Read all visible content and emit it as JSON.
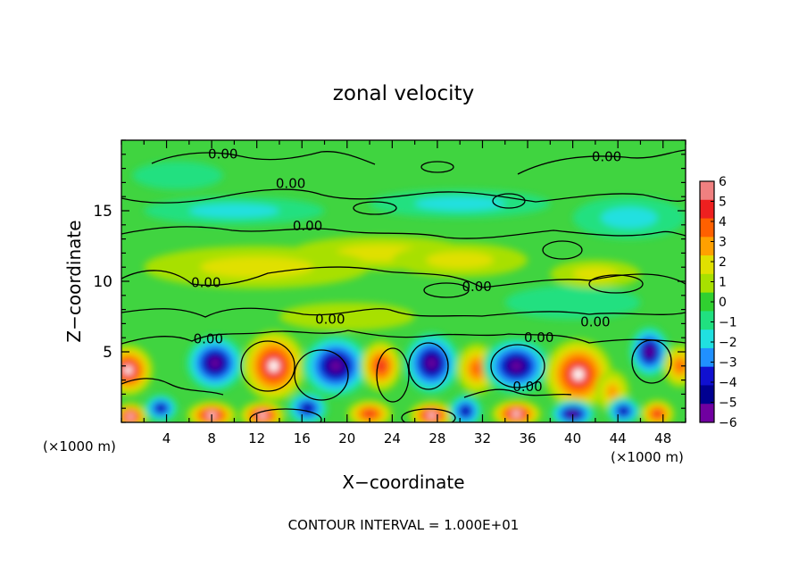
{
  "chart_data": {
    "type": "heatmap",
    "title": "zonal velocity",
    "xlabel": "X−coordinate",
    "ylabel": "Z−coordinate",
    "x_unit_left": "(×1000 m)",
    "x_unit_right": "(×1000 m)",
    "footer": "CONTOUR INTERVAL = 1.000E+01",
    "xlim": [
      0,
      50
    ],
    "ylim": [
      0,
      20
    ],
    "x_ticks": [
      4,
      8,
      12,
      16,
      20,
      24,
      28,
      32,
      36,
      40,
      44,
      48
    ],
    "x_tick_labels": [
      "4",
      "8",
      "12",
      "16",
      "20",
      "24",
      "28",
      "32",
      "36",
      "40",
      "44",
      "48"
    ],
    "y_ticks": [
      5,
      10,
      15
    ],
    "y_tick_labels": [
      "5",
      "10",
      "15"
    ],
    "colorbar": {
      "range": [
        -6,
        6
      ],
      "tick_labels": [
        "6",
        "5",
        "4",
        "3",
        "2",
        "1",
        "0",
        "−1",
        "−2",
        "−3",
        "−4",
        "−5",
        "−6"
      ],
      "colors": [
        "#f08080",
        "#ee2020",
        "#ff6000",
        "#ffa000",
        "#e0e000",
        "#a8e000",
        "#30d030",
        "#20e080",
        "#20e0e0",
        "#2090ff",
        "#1010d0",
        "#000090",
        "#7000a0"
      ]
    },
    "contour_labels": [
      {
        "text": "0.00",
        "x": 9,
        "y": 18.7
      },
      {
        "text": "0.00",
        "x": 15,
        "y": 16.6
      },
      {
        "text": "0.00",
        "x": 43,
        "y": 18.5
      },
      {
        "text": "0.00",
        "x": 16.5,
        "y": 13.6
      },
      {
        "text": "0.00",
        "x": 7.5,
        "y": 9.6
      },
      {
        "text": "0.00",
        "x": 31.5,
        "y": 9.3
      },
      {
        "text": "0.00",
        "x": 18.5,
        "y": 7.0
      },
      {
        "text": "0.00",
        "x": 7.7,
        "y": 5.6
      },
      {
        "text": "0.00",
        "x": 37,
        "y": 5.7
      },
      {
        "text": "0.00",
        "x": 42,
        "y": 6.8
      },
      {
        "text": "0.00",
        "x": 36,
        "y": 2.2
      }
    ],
    "blobs": [
      {
        "x": 0.6,
        "z": 3.7,
        "v": 6,
        "rx": 2.2,
        "rz": 1.8
      },
      {
        "x": 0.8,
        "z": 0.4,
        "v": 6,
        "rx": 1.5,
        "rz": 1.0
      },
      {
        "x": 8.3,
        "z": 4.2,
        "v": -6,
        "rx": 2.6,
        "rz": 2.0
      },
      {
        "x": 8.0,
        "z": 0.5,
        "v": 6,
        "rx": 2.2,
        "rz": 1.0
      },
      {
        "x": 3.5,
        "z": 1.0,
        "v": -5,
        "rx": 1.5,
        "rz": 1.0
      },
      {
        "x": 13.5,
        "z": 4.0,
        "v": 6,
        "rx": 2.8,
        "rz": 2.5
      },
      {
        "x": 12.5,
        "z": 0.5,
        "v": 6,
        "rx": 2.0,
        "rz": 1.0
      },
      {
        "x": 16.5,
        "z": 1.0,
        "v": -5,
        "rx": 1.8,
        "rz": 1.2
      },
      {
        "x": 19.0,
        "z": 4.0,
        "v": -6,
        "rx": 3.0,
        "rz": 2.2
      },
      {
        "x": 23.0,
        "z": 4.0,
        "v": 5,
        "rx": 1.8,
        "rz": 1.8
      },
      {
        "x": 22.0,
        "z": 0.6,
        "v": 5,
        "rx": 2.0,
        "rz": 1.0
      },
      {
        "x": 27.5,
        "z": 4.2,
        "v": -6,
        "rx": 2.5,
        "rz": 2.2
      },
      {
        "x": 27.5,
        "z": 0.5,
        "v": 6,
        "rx": 2.0,
        "rz": 1.0
      },
      {
        "x": 30.5,
        "z": 0.8,
        "v": -5,
        "rx": 1.5,
        "rz": 1.2
      },
      {
        "x": 31.5,
        "z": 3.8,
        "v": 4,
        "rx": 1.8,
        "rz": 1.8
      },
      {
        "x": 35.0,
        "z": 4.0,
        "v": -6,
        "rx": 3.0,
        "rz": 2.0
      },
      {
        "x": 35.0,
        "z": 0.6,
        "v": 6,
        "rx": 2.2,
        "rz": 1.0
      },
      {
        "x": 40.5,
        "z": 3.4,
        "v": 6,
        "rx": 3.0,
        "rz": 2.5
      },
      {
        "x": 40.0,
        "z": 0.6,
        "v": -6,
        "rx": 2.0,
        "rz": 1.0
      },
      {
        "x": 43.5,
        "z": 2.2,
        "v": 3,
        "rx": 1.5,
        "rz": 1.5
      },
      {
        "x": 46.8,
        "z": 5.0,
        "v": -6,
        "rx": 1.8,
        "rz": 1.8
      },
      {
        "x": 47.5,
        "z": 0.6,
        "v": 5,
        "rx": 1.5,
        "rz": 1.0
      },
      {
        "x": 49.5,
        "z": 4.0,
        "v": 4,
        "rx": 1.5,
        "rz": 1.5
      },
      {
        "x": 44.5,
        "z": 0.8,
        "v": -5,
        "rx": 1.5,
        "rz": 1.0
      },
      {
        "x": 23.0,
        "z": 12.0,
        "v": 2,
        "rx": 8.0,
        "rz": 1.2
      },
      {
        "x": 12.0,
        "z": 11.0,
        "v": 1.5,
        "rx": 10.0,
        "rz": 1.5
      },
      {
        "x": 30.0,
        "z": 11.5,
        "v": 1.5,
        "rx": 6.0,
        "rz": 1.2
      },
      {
        "x": 10.0,
        "z": 15.0,
        "v": -1.5,
        "rx": 8.0,
        "rz": 1.0
      },
      {
        "x": 30.0,
        "z": 15.5,
        "v": -1.5,
        "rx": 8.0,
        "rz": 1.0
      },
      {
        "x": 45.0,
        "z": 14.5,
        "v": -1.5,
        "rx": 5.0,
        "rz": 1.5
      },
      {
        "x": 5.0,
        "z": 17.5,
        "v": -1,
        "rx": 4.0,
        "rz": 1.0
      },
      {
        "x": 40.0,
        "z": 8.5,
        "v": -1,
        "rx": 6.0,
        "rz": 1.2
      },
      {
        "x": 20.0,
        "z": 7.5,
        "v": 1,
        "rx": 6.0,
        "rz": 1.0
      },
      {
        "x": 42.0,
        "z": 10.5,
        "v": 1.5,
        "rx": 4.0,
        "rz": 1.0
      }
    ]
  }
}
